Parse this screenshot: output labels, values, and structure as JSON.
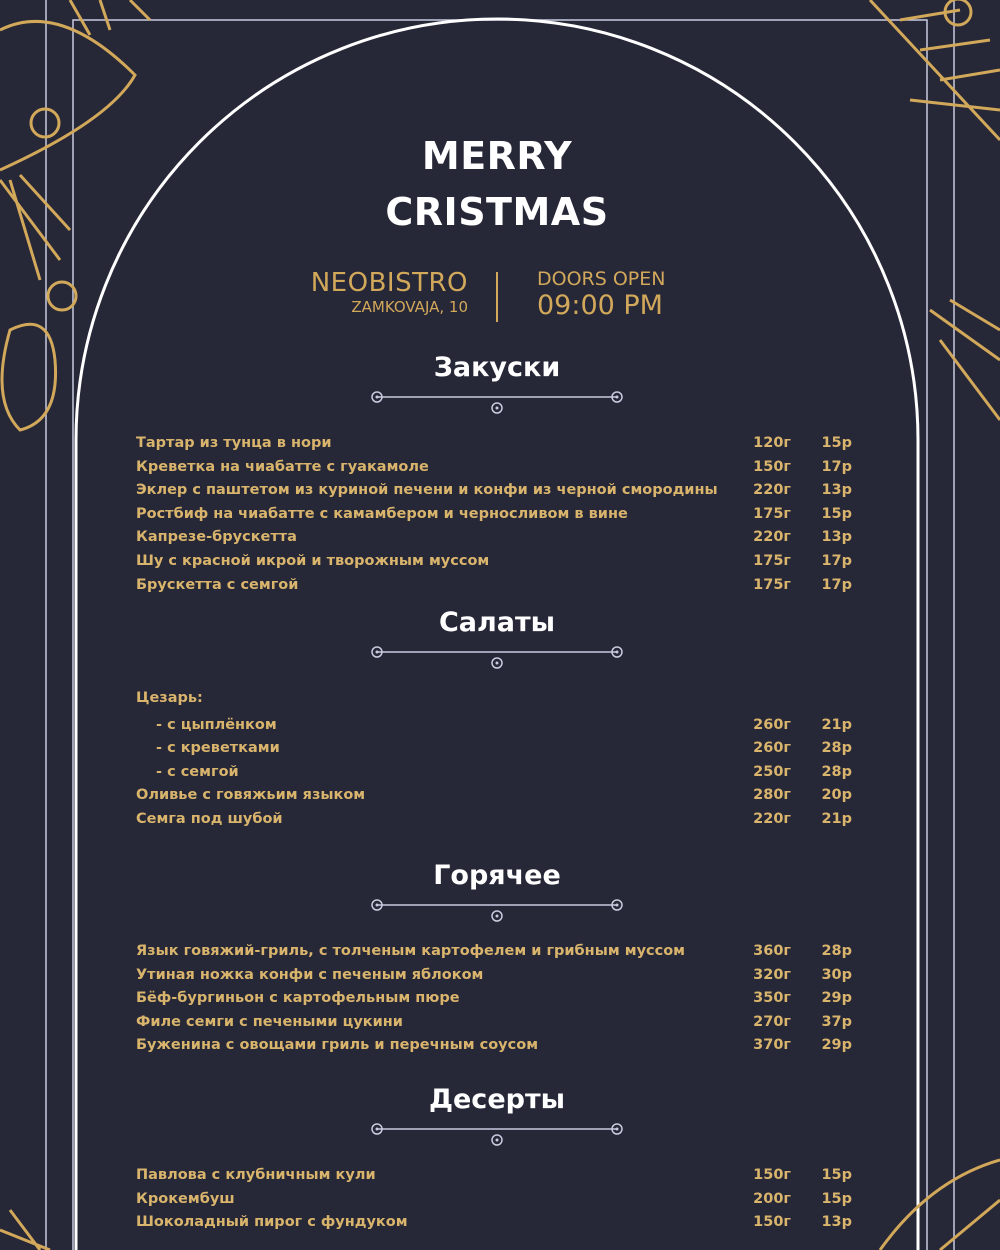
{
  "header": {
    "title_line1": "MERRY",
    "title_line2": "CRISTMAS"
  },
  "venue": {
    "name": "NEOBISTRO",
    "address": "ZAMKOVAJA, 10"
  },
  "doors": {
    "label": "DOORS OPEN",
    "time": "09:00 PM"
  },
  "colors": {
    "background": "#262737",
    "gold": "#d2a85a",
    "text": "#ffffff"
  },
  "sections": [
    {
      "title": "Закуски",
      "items": [
        {
          "name": "Тартар из тунца в нори",
          "weight": "120г",
          "price": "15р"
        },
        {
          "name": "Креветка на чиабатте с гуакамоле",
          "weight": "150г",
          "price": "17р"
        },
        {
          "name": "Эклер с паштетом из куриной печени и конфи из черной смородины",
          "weight": "220г",
          "price": "13р"
        },
        {
          "name": "Ростбиф на чиабатте с камамбером и черносливом в вине",
          "weight": "175г",
          "price": "15р"
        },
        {
          "name": "Капрезе-брускетта",
          "weight": "220г",
          "price": "13р"
        },
        {
          "name": "Шу с красной икрой и творожным муссом",
          "weight": "175г",
          "price": "17р"
        },
        {
          "name": "Брускетта с семгой",
          "weight": "175г",
          "price": "17р"
        }
      ]
    },
    {
      "title": "Салаты",
      "items": [
        {
          "name": "Цезарь:",
          "weight": "",
          "price": ""
        },
        {
          "name": "- с цыплёнком",
          "weight": "260г",
          "price": "21р",
          "sub": true
        },
        {
          "name": "- с креветками",
          "weight": "260г",
          "price": "28р",
          "sub": true
        },
        {
          "name": "- с семгой",
          "weight": "250г",
          "price": "28р",
          "sub": true
        },
        {
          "name": "Оливье с говяжьим языком",
          "weight": "280г",
          "price": "20р"
        },
        {
          "name": "Семга под шубой",
          "weight": "220г",
          "price": "21р"
        }
      ]
    },
    {
      "title": "Горячее",
      "items": [
        {
          "name": "Язык говяжий-гриль, с толченым картофелем и грибным муссом",
          "weight": "360г",
          "price": "28р"
        },
        {
          "name": "Утиная ножка конфи с печеным яблоком",
          "weight": "320г",
          "price": "30р"
        },
        {
          "name": "Бёф-бургиньон с картофельным пюре",
          "weight": "350г",
          "price": "29р"
        },
        {
          "name": "Филе семги с печеными цукини",
          "weight": "270г",
          "price": "37р"
        },
        {
          "name": "Буженина с овощами гриль и перечным соусом",
          "weight": "370г",
          "price": "29р"
        }
      ]
    },
    {
      "title": "Десерты",
      "items": [
        {
          "name": "Павлова с клубничным кули",
          "weight": "150г",
          "price": "15р"
        },
        {
          "name": "Крокембуш",
          "weight": "200г",
          "price": "15р"
        },
        {
          "name": "Шоколадный пирог с фундуком",
          "weight": "150г",
          "price": "13р"
        }
      ]
    }
  ]
}
